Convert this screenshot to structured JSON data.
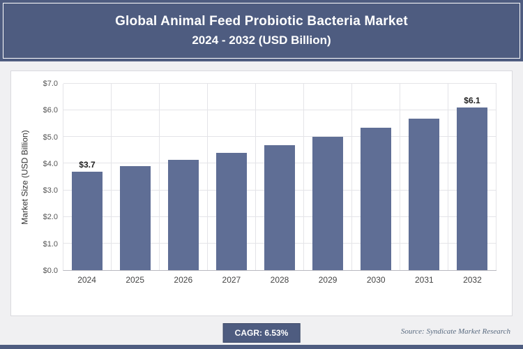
{
  "header": {
    "title_line1": "Global Animal Feed Probiotic Bacteria Market",
    "title_line2": "2024 - 2032 (USD Billion)"
  },
  "chart_data": {
    "type": "bar",
    "title": "Global Animal Feed Probiotic Bacteria Market 2024 - 2032 (USD Billion)",
    "categories": [
      "2024",
      "2025",
      "2026",
      "2027",
      "2028",
      "2029",
      "2030",
      "2031",
      "2032"
    ],
    "values": [
      3.7,
      3.9,
      4.15,
      4.4,
      4.7,
      5.0,
      5.35,
      5.7,
      6.1
    ],
    "value_labels": [
      "$3.7",
      "",
      "",
      "",
      "",
      "",
      "",
      "",
      "$6.1"
    ],
    "xlabel": "",
    "ylabel": "Market Size (USD Billion)",
    "ylim": [
      0,
      7
    ],
    "yticks": [
      "$0.0",
      "$1.0",
      "$2.0",
      "$3.0",
      "$4.0",
      "$5.0",
      "$6.0",
      "$7.0"
    ],
    "grid": "on",
    "legend": "none",
    "bar_color": "#5f6e95"
  },
  "footer": {
    "cagr_label": "CAGR: 6.53%",
    "source": "Source: Syndicate Market Research"
  }
}
